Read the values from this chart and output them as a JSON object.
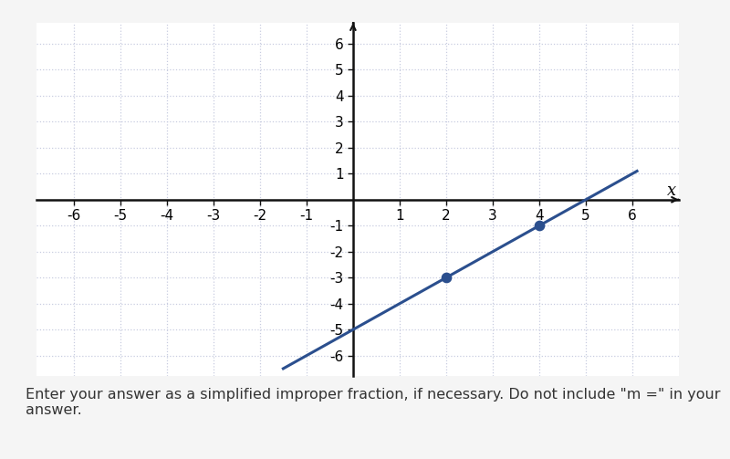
{
  "xlim": [
    -6.8,
    7.0
  ],
  "ylim": [
    -6.8,
    6.8
  ],
  "xticks": [
    -6,
    -5,
    -4,
    -3,
    -2,
    -1,
    1,
    2,
    3,
    4,
    5,
    6
  ],
  "yticks": [
    -6,
    -5,
    -4,
    -3,
    -2,
    -1,
    1,
    2,
    3,
    4,
    5,
    6
  ],
  "xlabel": "x",
  "line_color": "#2b4f8e",
  "line_x_start": -1.5,
  "line_x_end": 6.1,
  "point1": [
    2,
    -3
  ],
  "point2": [
    4,
    -1
  ],
  "slope": 1,
  "intercept": -5,
  "dot_color": "#2b4f8e",
  "dot_size": 55,
  "grid_color": "#c8cce0",
  "axis_color": "#111111",
  "bg_color": "#ffffff",
  "top_bar_color": "#4a86c8",
  "fig_bg_color": "#f5f5f5",
  "line_width": 2.2,
  "tick_label_fontsize": 11,
  "xlabel_fontsize": 13,
  "instruction_text": "Enter your answer as a simplified improper fraction, if necessary. Do not include \"m =\" in your\nanswer.",
  "instruction_fontsize": 11.5
}
